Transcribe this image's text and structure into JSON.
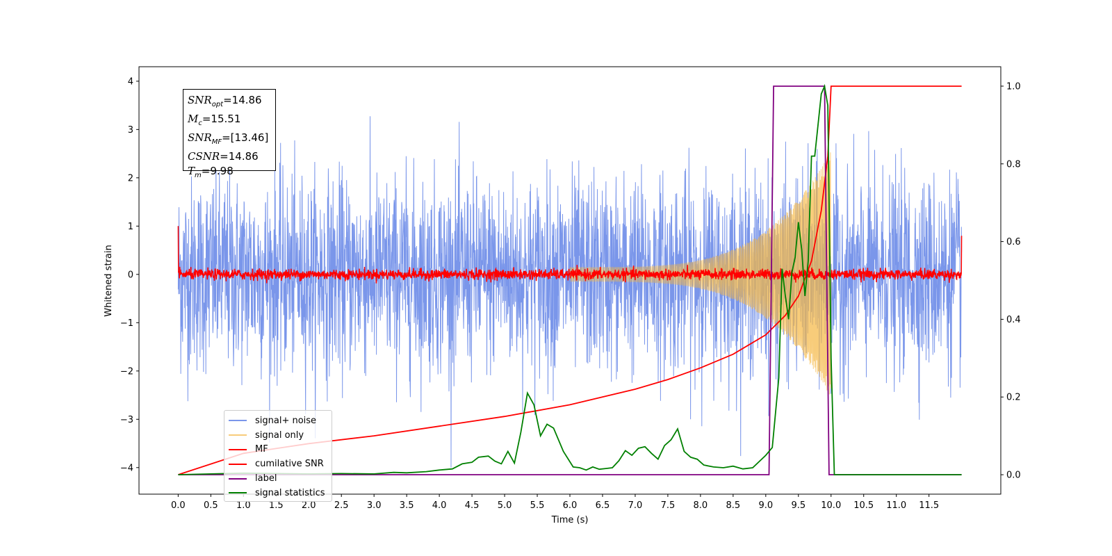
{
  "stats_box": {
    "snr_opt_label": "SNR",
    "snr_opt_sub": "opt",
    "snr_opt_value": "=14.86",
    "mc_label": "M",
    "mc_sub": "c",
    "mc_value": "=15.51",
    "snr_mf_label": "SNR",
    "snr_mf_sub": "MF",
    "snr_mf_value": "=[13.46]",
    "csnr_label": "CSNR",
    "csnr_value": "=14.86",
    "tm_label": "T",
    "tm_sub": "m",
    "tm_value": "=9.98"
  },
  "chart_data": {
    "type": "line",
    "xlabel": "Time (s)",
    "ylabel": "Whitened strain",
    "xlim": [
      -0.6,
      12.6
    ],
    "ylim": [
      -4.55,
      4.3
    ],
    "y2lim": [
      -0.05,
      1.05
    ],
    "x_ticks": [
      "0.0",
      "0.5",
      "1.0",
      "1.5",
      "2.0",
      "2.5",
      "3.0",
      "3.5",
      "4.0",
      "4.5",
      "5.0",
      "5.5",
      "6.0",
      "6.5",
      "7.0",
      "7.5",
      "8.0",
      "8.5",
      "9.0",
      "9.5",
      "10.0",
      "10.5",
      "11.0",
      "11.5"
    ],
    "y_ticks": [
      "4",
      "3",
      "2",
      "1",
      "0",
      "−1",
      "−2",
      "−3",
      "−4"
    ],
    "y2_ticks": [
      "1.0",
      "0.8",
      "0.6",
      "0.4",
      "0.2",
      "0.0"
    ],
    "colors": {
      "signal_noise": "#4169e1",
      "signal_only": "#f5b642",
      "mf": "#ff0000",
      "cumulative_snr": "#ff0000",
      "label": "#800080",
      "signal_statistics": "#008000"
    },
    "series": [
      {
        "name": "signal+ noise",
        "description_axis": "left",
        "x_range": [
          0,
          12
        ],
        "noise_std": 1.0
      },
      {
        "name": "signal only",
        "axis": "left",
        "x_range": [
          0,
          10
        ]
      },
      {
        "name": "MF",
        "axis": "left",
        "x_range": [
          0,
          12
        ],
        "noise_std": 0.06
      },
      {
        "name": "cumilative SNR",
        "axis": "right",
        "x": [
          0,
          1,
          2,
          3,
          4,
          5,
          6,
          7,
          7.5,
          8,
          8.5,
          9,
          9.3,
          9.5,
          9.7,
          9.85,
          9.95,
          10.0,
          12.0
        ],
        "y": [
          0.0,
          0.055,
          0.08,
          0.1,
          0.125,
          0.15,
          0.18,
          0.22,
          0.245,
          0.275,
          0.31,
          0.36,
          0.41,
          0.46,
          0.55,
          0.68,
          0.82,
          1.0,
          1.0
        ]
      },
      {
        "name": "label",
        "axis": "right",
        "x": [
          0,
          9.05,
          9.12,
          9.9,
          9.97,
          12.0
        ],
        "y": [
          0,
          0,
          1,
          1,
          0,
          0
        ]
      },
      {
        "name": "signal statistics",
        "axis": "right",
        "x": [
          0,
          0.5,
          1.0,
          1.5,
          2.0,
          2.5,
          3.0,
          3.3,
          3.5,
          3.8,
          4.0,
          4.2,
          4.35,
          4.5,
          4.6,
          4.75,
          4.85,
          4.95,
          5.05,
          5.15,
          5.25,
          5.35,
          5.45,
          5.55,
          5.65,
          5.75,
          5.9,
          6.05,
          6.15,
          6.25,
          6.35,
          6.45,
          6.55,
          6.65,
          6.75,
          6.85,
          6.95,
          7.05,
          7.15,
          7.25,
          7.35,
          7.45,
          7.55,
          7.65,
          7.75,
          7.85,
          7.95,
          8.05,
          8.2,
          8.35,
          8.5,
          8.65,
          8.8,
          9.0,
          9.1,
          9.2,
          9.25,
          9.3,
          9.35,
          9.4,
          9.45,
          9.5,
          9.55,
          9.6,
          9.65,
          9.7,
          9.75,
          9.8,
          9.85,
          9.9,
          9.95,
          10.0,
          10.05,
          11.0,
          12.0
        ],
        "y": [
          0.0,
          0.002,
          0.004,
          0.003,
          0.002,
          0.003,
          0.002,
          0.006,
          0.005,
          0.008,
          0.012,
          0.015,
          0.028,
          0.032,
          0.045,
          0.048,
          0.035,
          0.028,
          0.06,
          0.03,
          0.11,
          0.21,
          0.18,
          0.1,
          0.13,
          0.12,
          0.06,
          0.02,
          0.018,
          0.012,
          0.02,
          0.014,
          0.016,
          0.018,
          0.036,
          0.062,
          0.05,
          0.068,
          0.072,
          0.055,
          0.04,
          0.075,
          0.09,
          0.118,
          0.06,
          0.045,
          0.04,
          0.025,
          0.02,
          0.018,
          0.022,
          0.015,
          0.018,
          0.05,
          0.07,
          0.25,
          0.53,
          0.46,
          0.4,
          0.52,
          0.56,
          0.65,
          0.58,
          0.46,
          0.55,
          0.82,
          0.82,
          0.9,
          0.98,
          1.0,
          0.95,
          0.3,
          0.0,
          0.0,
          0.0
        ]
      }
    ],
    "legend": {
      "position": "lower left",
      "entries": [
        "signal+ noise",
        "signal only",
        "MF",
        "cumilative SNR",
        "label",
        "signal statistics"
      ]
    },
    "grid": false
  }
}
